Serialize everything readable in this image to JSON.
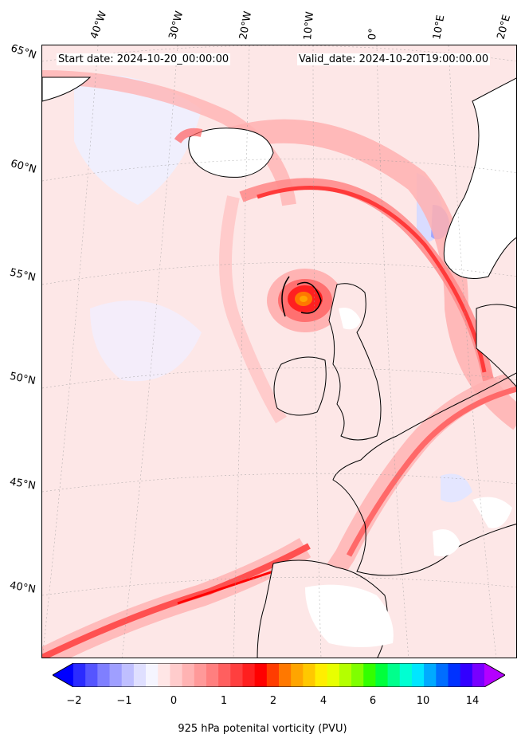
{
  "header": {
    "start_date": "Start date: 2024-10-20_00:00:00",
    "valid_date": "Valid_date: 2024-10-20T19:00:00.00"
  },
  "longitude_labels": [
    "40°W",
    "30°W",
    "20°W",
    "10°W",
    "0°",
    "10°E",
    "20°E"
  ],
  "latitude_labels": [
    "65°N",
    "60°N",
    "55°N",
    "50°N",
    "45°N",
    "40°N"
  ],
  "colorbar": {
    "label": "925 hPa potenital vorticity (PVU)",
    "ticks": [
      "−2",
      "−1",
      "0",
      "1",
      "2",
      "4",
      "6",
      "10",
      "14"
    ],
    "colors": [
      "#0000ff",
      "#2b2bff",
      "#5555ff",
      "#7f7fff",
      "#9f9fff",
      "#bfbfff",
      "#dfdfff",
      "#f5f5ff",
      "#ffe6e6",
      "#ffcccc",
      "#ffb3b3",
      "#ff9999",
      "#ff7f7f",
      "#ff5f5f",
      "#ff3f3f",
      "#ff1f1f",
      "#ff0000",
      "#ff3c00",
      "#ff7800",
      "#ffa500",
      "#ffc800",
      "#ffee00",
      "#e8ff00",
      "#b4ff00",
      "#7fff00",
      "#32ff00",
      "#00ff3c",
      "#00ff8c",
      "#00ffd2",
      "#00e6ff",
      "#00aaff",
      "#006eff",
      "#0032ff",
      "#3200ff",
      "#7800ff",
      "#b400ff"
    ]
  }
}
